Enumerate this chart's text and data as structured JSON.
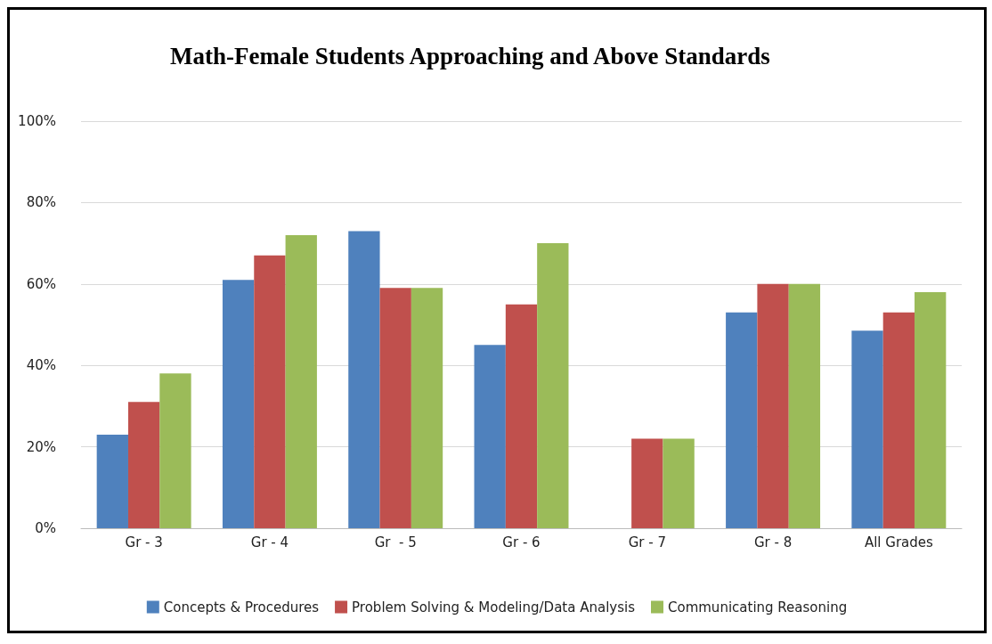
{
  "chart_data": {
    "type": "bar",
    "title": "Math-Female Students Approaching and Above Standards",
    "categories": [
      "Gr - 3",
      "Gr - 4",
      "Gr  - 5",
      "Gr - 6",
      "Gr - 7",
      "Gr - 8",
      "All Grades"
    ],
    "series": [
      {
        "name": "Concepts & Procedures",
        "color": "#4f81bd",
        "values": [
          23,
          61,
          73,
          45,
          null,
          53,
          48.5
        ]
      },
      {
        "name": "Problem Solving & Modeling/Data Analysis",
        "color": "#c0504d",
        "values": [
          31,
          67,
          59,
          55,
          22,
          60,
          53
        ]
      },
      {
        "name": "Communicating Reasoning",
        "color": "#9bbb59",
        "values": [
          38,
          72,
          59,
          70,
          22,
          60,
          58
        ]
      }
    ],
    "ylim": [
      0,
      100
    ],
    "yticks": [
      {
        "value": 0,
        "label": "0%"
      },
      {
        "value": 20,
        "label": "20%"
      },
      {
        "value": 40,
        "label": "40%"
      },
      {
        "value": 60,
        "label": "60%"
      },
      {
        "value": 80,
        "label": "80%"
      },
      {
        "value": 100,
        "label": "100%"
      }
    ],
    "grid": "y",
    "legend": "bottom"
  }
}
